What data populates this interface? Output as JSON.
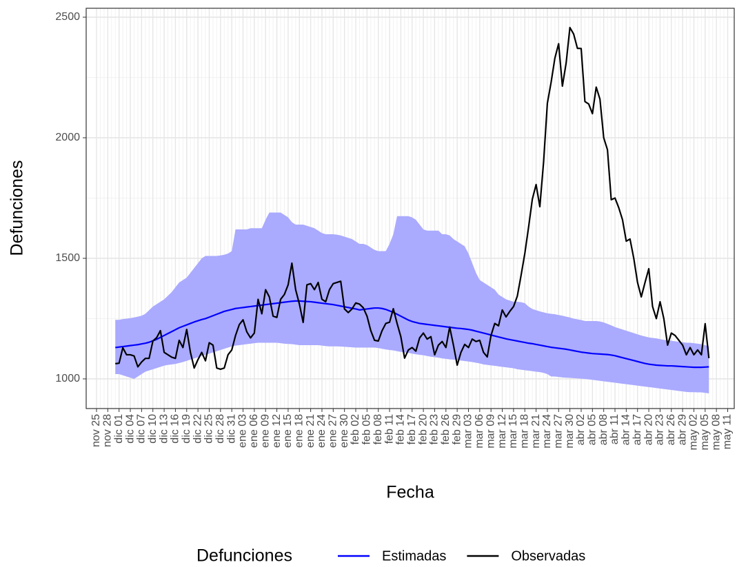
{
  "chart_data": {
    "type": "line",
    "x_label": "Fecha",
    "y_label": "Defunciones",
    "legend_title": "Defunciones",
    "legend_position": "bottom",
    "grid": true,
    "ylim": [
      877,
      2537
    ],
    "yticks": [
      1000,
      1500,
      2000,
      2500
    ],
    "categories": [
      "nov 25",
      null,
      null,
      "nov 28",
      null,
      null,
      "dic 01",
      null,
      null,
      "dic 04",
      null,
      null,
      "dic 07",
      null,
      null,
      "dic 10",
      null,
      null,
      "dic 13",
      null,
      null,
      "dic 16",
      null,
      null,
      "dic 19",
      null,
      null,
      "dic 22",
      null,
      null,
      "dic 25",
      null,
      null,
      "dic 28",
      null,
      null,
      "dic 31",
      null,
      null,
      "ene 03",
      null,
      null,
      "ene 06",
      null,
      null,
      "ene 09",
      null,
      null,
      "ene 12",
      null,
      null,
      "ene 15",
      null,
      null,
      "ene 18",
      null,
      null,
      "ene 21",
      null,
      null,
      "ene 24",
      null,
      null,
      "ene 27",
      null,
      null,
      "ene 30",
      null,
      null,
      "feb 02",
      null,
      null,
      "feb 05",
      null,
      null,
      "feb 08",
      null,
      null,
      "feb 11",
      null,
      null,
      "feb 14",
      null,
      null,
      "feb 17",
      null,
      null,
      "feb 20",
      null,
      null,
      "feb 23",
      null,
      null,
      "feb 26",
      null,
      null,
      "feb 29",
      null,
      null,
      "mar 03",
      null,
      null,
      "mar 06",
      null,
      null,
      "mar 09",
      null,
      null,
      "mar 12",
      null,
      null,
      "mar 15",
      null,
      null,
      "mar 18",
      null,
      null,
      "mar 21",
      null,
      null,
      "mar 24",
      null,
      null,
      "mar 27",
      null,
      null,
      "mar 30",
      null,
      null,
      "abr 02",
      null,
      null,
      "abr 05",
      null,
      null,
      "abr 08",
      null,
      null,
      "abr 11",
      null,
      null,
      "abr 14",
      null,
      null,
      "abr 17",
      null,
      null,
      "abr 20",
      null,
      null,
      "abr 23",
      null,
      null,
      "abr 26",
      null,
      null,
      "abr 29",
      null,
      null,
      "may 02",
      null,
      null,
      "may 05",
      null,
      null,
      "may 08",
      null,
      null,
      "may 11"
    ],
    "series": [
      {
        "name": "Estimadas",
        "color": "#0000ff",
        "band_color": "#aaaaff",
        "values": [
          null,
          null,
          null,
          null,
          null,
          1130,
          1132,
          1134,
          1136,
          1138,
          1140,
          1142,
          1145,
          1148,
          1152,
          1158,
          1164,
          1172,
          1180,
          1188,
          1196,
          1204,
          1212,
          1218,
          1224,
          1230,
          1236,
          1241,
          1246,
          1250,
          1256,
          1262,
          1268,
          1274,
          1280,
          1284,
          1288,
          1292,
          1294,
          1296,
          1298,
          1300,
          1302,
          1304,
          1306,
          1308,
          1310,
          1312,
          1314,
          1316,
          1318,
          1320,
          1322,
          1323,
          1323,
          1322,
          1321,
          1320,
          1318,
          1316,
          1314,
          1312,
          1310,
          1308,
          1305,
          1302,
          1299,
          1296,
          1293,
          1290,
          1286,
          1288,
          1290,
          1292,
          1294,
          1294,
          1292,
          1288,
          1282,
          1276,
          1268,
          1260,
          1252,
          1244,
          1238,
          1234,
          1230,
          1228,
          1226,
          1224,
          1222,
          1220,
          1218,
          1216,
          1214,
          1212,
          1210,
          1209,
          1207,
          1205,
          1202,
          1198,
          1194,
          1190,
          1186,
          1182,
          1178,
          1174,
          1170,
          1166,
          1163,
          1160,
          1157,
          1154,
          1151,
          1148,
          1146,
          1143,
          1140,
          1137,
          1134,
          1131,
          1129,
          1127,
          1125,
          1123,
          1120,
          1117,
          1114,
          1111,
          1109,
          1107,
          1105,
          1104,
          1103,
          1102,
          1101,
          1099,
          1096,
          1092,
          1088,
          1084,
          1080,
          1076,
          1072,
          1068,
          1064,
          1061,
          1059,
          1057,
          1056,
          1055,
          1054,
          1054,
          1053,
          1052,
          1051,
          1050,
          1049,
          1048,
          1048,
          1048,
          1049,
          1050,
          null,
          null,
          null,
          null,
          null
        ],
        "lower": [
          null,
          null,
          null,
          null,
          null,
          1020,
          1020,
          1015,
          1010,
          1005,
          1000,
          1010,
          1020,
          1030,
          1035,
          1040,
          1045,
          1050,
          1055,
          1058,
          1060,
          1062,
          1066,
          1070,
          1075,
          1080,
          1085,
          1090,
          1095,
          1100,
          1105,
          1110,
          1115,
          1120,
          1125,
          1130,
          1135,
          1138,
          1140,
          1142,
          1144,
          1146,
          1148,
          1150,
          1150,
          1150,
          1150,
          1150,
          1150,
          1148,
          1146,
          1145,
          1144,
          1142,
          1140,
          1140,
          1140,
          1140,
          1140,
          1140,
          1138,
          1136,
          1135,
          1135,
          1135,
          1134,
          1133,
          1132,
          1131,
          1130,
          1130,
          1130,
          1130,
          1130,
          1130,
          1128,
          1125,
          1122,
          1120,
          1118,
          1115,
          1112,
          1110,
          1108,
          1105,
          1102,
          1100,
          1098,
          1095,
          1092,
          1090,
          1088,
          1085,
          1083,
          1081,
          1080,
          1078,
          1076,
          1074,
          1072,
          1070,
          1067,
          1064,
          1060,
          1058,
          1056,
          1054,
          1052,
          1050,
          1048,
          1046,
          1044,
          1040,
          1038,
          1036,
          1034,
          1032,
          1030,
          1028,
          1025,
          1020,
          1010,
          1010,
          1008,
          1006,
          1005,
          1004,
          1003,
          1002,
          1001,
          1000,
          998,
          996,
          994,
          992,
          990,
          988,
          986,
          984,
          982,
          980,
          978,
          976,
          974,
          972,
          970,
          968,
          966,
          964,
          962,
          960,
          958,
          956,
          954,
          952,
          950,
          948,
          946,
          945,
          945,
          944,
          944,
          942,
          940,
          null,
          null,
          null,
          null,
          null
        ],
        "upper": [
          null,
          null,
          null,
          null,
          null,
          1245,
          1245,
          1248,
          1250,
          1252,
          1255,
          1258,
          1262,
          1270,
          1285,
          1300,
          1310,
          1320,
          1330,
          1345,
          1360,
          1380,
          1400,
          1410,
          1420,
          1440,
          1460,
          1480,
          1500,
          1510,
          1510,
          1510,
          1510,
          1512,
          1515,
          1520,
          1530,
          1620,
          1620,
          1620,
          1620,
          1625,
          1625,
          1625,
          1625,
          1660,
          1690,
          1690,
          1690,
          1690,
          1680,
          1670,
          1650,
          1640,
          1640,
          1640,
          1635,
          1630,
          1625,
          1615,
          1605,
          1600,
          1600,
          1600,
          1598,
          1595,
          1590,
          1585,
          1580,
          1570,
          1560,
          1560,
          1555,
          1545,
          1535,
          1530,
          1530,
          1530,
          1560,
          1600,
          1675,
          1675,
          1675,
          1675,
          1670,
          1660,
          1640,
          1620,
          1615,
          1615,
          1615,
          1615,
          1600,
          1600,
          1595,
          1580,
          1570,
          1560,
          1550,
          1520,
          1480,
          1440,
          1410,
          1400,
          1390,
          1380,
          1370,
          1350,
          1340,
          1330,
          1325,
          1320,
          1320,
          1318,
          1314,
          1300,
          1290,
          1285,
          1280,
          1276,
          1272,
          1270,
          1268,
          1265,
          1262,
          1258,
          1255,
          1250,
          1247,
          1244,
          1240,
          1240,
          1240,
          1240,
          1238,
          1234,
          1228,
          1222,
          1215,
          1210,
          1205,
          1200,
          1195,
          1190,
          1185,
          1180,
          1176,
          1172,
          1170,
          1168,
          1165,
          1162,
          1160,
          1158,
          1156,
          1154,
          1152,
          1150,
          1150,
          1148,
          1146,
          1144,
          1140,
          1135,
          null,
          null,
          null,
          null,
          null
        ]
      },
      {
        "name": "Observadas",
        "color": "#000000",
        "values": [
          null,
          null,
          null,
          null,
          null,
          1063,
          1065,
          1129,
          1100,
          1100,
          1095,
          1050,
          1070,
          1085,
          1085,
          1157,
          1171,
          1200,
          1110,
          1100,
          1090,
          1085,
          1160,
          1130,
          1205,
          1110,
          1045,
          1080,
          1110,
          1075,
          1150,
          1140,
          1045,
          1040,
          1045,
          1100,
          1120,
          1180,
          1225,
          1245,
          1195,
          1170,
          1190,
          1330,
          1270,
          1370,
          1340,
          1260,
          1255,
          1330,
          1350,
          1390,
          1480,
          1370,
          1310,
          1234,
          1390,
          1395,
          1370,
          1400,
          1330,
          1320,
          1370,
          1395,
          1400,
          1405,
          1290,
          1275,
          1290,
          1315,
          1310,
          1295,
          1260,
          1200,
          1160,
          1157,
          1200,
          1230,
          1235,
          1291,
          1230,
          1175,
          1086,
          1120,
          1130,
          1115,
          1170,
          1190,
          1165,
          1175,
          1100,
          1140,
          1155,
          1130,
          1215,
          1140,
          1057,
          1110,
          1143,
          1130,
          1165,
          1155,
          1160,
          1110,
          1091,
          1180,
          1230,
          1220,
          1286,
          1257,
          1280,
          1300,
          1343,
          1429,
          1520,
          1629,
          1745,
          1806,
          1714,
          1900,
          2143,
          2230,
          2330,
          2390,
          2214,
          2310,
          2457,
          2430,
          2371,
          2370,
          2150,
          2140,
          2100,
          2210,
          2160,
          2000,
          1950,
          1743,
          1750,
          1710,
          1660,
          1571,
          1580,
          1500,
          1400,
          1340,
          1400,
          1457,
          1300,
          1250,
          1320,
          1250,
          1140,
          1190,
          1180,
          1160,
          1140,
          1100,
          1130,
          1100,
          1120,
          1100,
          1229,
          1086,
          null,
          null,
          null,
          null,
          null
        ]
      }
    ]
  }
}
